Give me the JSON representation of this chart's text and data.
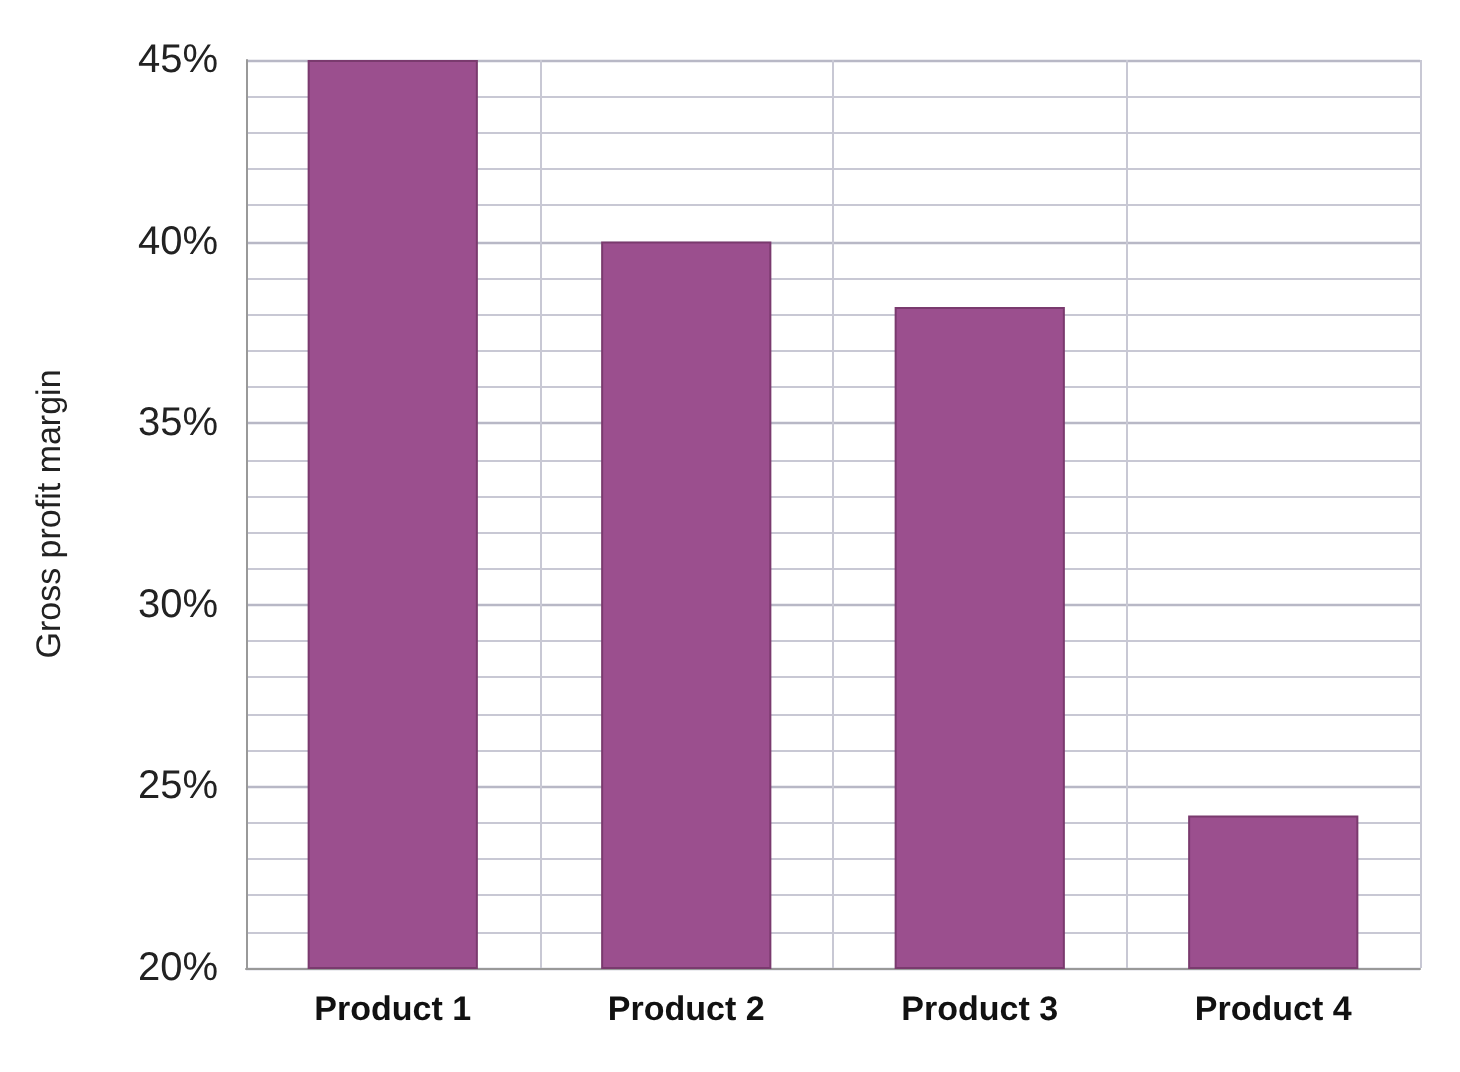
{
  "chart_data": {
    "type": "bar",
    "ylabel": "Gross profit margin",
    "categories": [
      "Product 1",
      "Product 2",
      "Product 3",
      "Product 4"
    ],
    "values": [
      45,
      40,
      38.2,
      24.2
    ],
    "color": "#9b4f8e",
    "ylim": [
      20,
      45
    ],
    "yticks": [
      {
        "value": 20,
        "label": "20%"
      },
      {
        "value": 25,
        "label": "25%"
      },
      {
        "value": 30,
        "label": "30%"
      },
      {
        "value": 35,
        "label": "35%"
      },
      {
        "value": 40,
        "label": "40%"
      },
      {
        "value": 45,
        "label": "45%"
      }
    ],
    "grid": true
  }
}
